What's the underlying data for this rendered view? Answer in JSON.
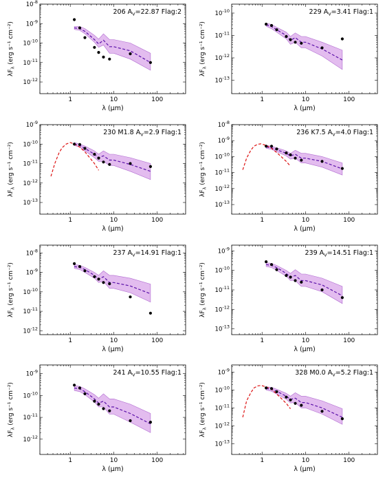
{
  "figure": {
    "x_label": "λ (μm)",
    "y_label": "λF_λ (erg s⁻¹ cm⁻²)"
  },
  "chart_data": [
    {
      "type": "scatter",
      "id": "206",
      "spectral_type": "",
      "av_label": "A_V=22.87",
      "flag": "Flag:2",
      "xlim": [
        0.2,
        450
      ],
      "ylog_range": [
        -12.6,
        -8
      ],
      "yticks": [
        "10^-12",
        "10^-11",
        "10^-10",
        "10^-9",
        "10^-8"
      ],
      "xticks": [
        "1",
        "10",
        "100"
      ],
      "photometry": {
        "x": [
          1.24,
          1.65,
          2.17,
          3.6,
          4.5,
          5.8,
          8.0,
          24,
          70
        ],
        "y": [
          1.6e-09,
          6e-10,
          1.9e-10,
          6e-11,
          3.3e-11,
          1.9e-11,
          1.5e-11,
          2.8e-11,
          1e-11
        ]
      },
      "model_median": {
        "x": [
          1.24,
          1.65,
          2.17,
          3.6,
          4.5,
          5.8,
          8.0,
          10,
          24,
          70
        ],
        "y": [
          6e-10,
          5.5e-10,
          4e-10,
          1.5e-10,
          9e-11,
          1.4e-10,
          6.5e-11,
          6.5e-11,
          4e-11,
          1e-11
        ]
      },
      "model_band_upper": [
        7e-10,
        7e-10,
        5.5e-10,
        2.5e-10,
        1.6e-10,
        3e-10,
        1.5e-10,
        1.5e-10,
        1e-10,
        3e-11
      ],
      "model_band_lower": [
        5e-10,
        4.5e-10,
        3e-10,
        1.1e-10,
        6e-11,
        8e-11,
        3e-11,
        3e-11,
        1.5e-11,
        4e-12
      ],
      "photosphere": null
    },
    {
      "type": "scatter",
      "id": "229",
      "spectral_type": "",
      "av_label": "A_V=3.41",
      "flag": "Flag:1",
      "xlim": [
        0.2,
        450
      ],
      "ylog_range": [
        -13.6,
        -9.6
      ],
      "yticks": [
        "10^-13",
        "10^-12",
        "10^-11",
        "10^-10"
      ],
      "xticks": [
        "1",
        "10",
        "100"
      ],
      "photometry": {
        "x": [
          1.24,
          1.65,
          2.17,
          3.6,
          4.5,
          5.8,
          8.0,
          24,
          70
        ],
        "y": [
          3.2e-11,
          2.8e-11,
          1.8e-11,
          9e-12,
          6.5e-12,
          5e-12,
          4.5e-12,
          2.8e-12,
          7e-12
        ]
      },
      "model_median": {
        "x": [
          1.24,
          1.65,
          2.17,
          3.6,
          4.5,
          5.8,
          8.0,
          10,
          24,
          70
        ],
        "y": [
          3e-11,
          2.5e-11,
          1.8e-11,
          1e-11,
          6e-12,
          8e-12,
          5e-12,
          5e-12,
          2.5e-12,
          8e-13
        ]
      },
      "model_band_upper": [
        3.5e-11,
        3.1e-11,
        2.3e-11,
        1.4e-11,
        9e-12,
        1.3e-11,
        9e-12,
        9e-12,
        5e-12,
        2.2e-12
      ],
      "model_band_lower": [
        2.6e-11,
        2e-11,
        1.4e-11,
        7e-12,
        4e-12,
        5e-12,
        2.8e-12,
        2.8e-12,
        1.2e-12,
        3e-13
      ],
      "photosphere": null
    },
    {
      "type": "scatter",
      "id": "230",
      "spectral_type": "M1.8",
      "av_label": "A_V=2.9",
      "flag": "Flag:1",
      "xlim": [
        0.2,
        450
      ],
      "ylog_range": [
        -13.6,
        -9
      ],
      "yticks": [
        "10^-13",
        "10^-12",
        "10^-11",
        "10^-10",
        "10^-9"
      ],
      "xticks": [
        "1",
        "10",
        "100"
      ],
      "photometry": {
        "x": [
          1.24,
          1.65,
          2.17,
          3.6,
          4.5,
          5.8,
          8.0,
          24,
          70
        ],
        "y": [
          1e-10,
          9.5e-11,
          6e-11,
          3e-11,
          1.9e-11,
          1.2e-11,
          9e-12,
          1e-11,
          7e-12
        ]
      },
      "model_median": {
        "x": [
          1.24,
          1.65,
          2.17,
          3.6,
          4.5,
          5.8,
          8.0,
          10,
          24,
          70
        ],
        "y": [
          1e-10,
          8.5e-11,
          6e-11,
          3e-11,
          2e-11,
          2.5e-11,
          1.5e-11,
          1.5e-11,
          9e-12,
          4e-12
        ]
      },
      "model_band_upper": [
        1.2e-10,
        1e-10,
        8e-11,
        4.5e-11,
        3e-11,
        4.5e-11,
        3e-11,
        3e-11,
        2e-11,
        1e-11
      ],
      "model_band_lower": [
        8.5e-11,
        7e-11,
        4.5e-11,
        2e-11,
        1.3e-11,
        1.3e-11,
        8e-12,
        8e-12,
        4e-12,
        1.5e-12
      ],
      "photosphere": {
        "x": [
          0.36,
          0.44,
          0.55,
          0.65,
          0.8,
          1.0,
          1.24,
          1.65,
          2.17,
          3.6,
          4.5
        ],
        "y": [
          2.2e-12,
          1e-11,
          3.5e-11,
          6.5e-11,
          1e-10,
          1.2e-10,
          1e-10,
          7e-11,
          4e-11,
          1e-11,
          4.5e-12
        ]
      }
    },
    {
      "type": "scatter",
      "id": "236",
      "spectral_type": "K7.5",
      "av_label": "A_V=4.0",
      "flag": "Flag:1",
      "xlim": [
        0.2,
        450
      ],
      "ylog_range": [
        -13.6,
        -8
      ],
      "yticks": [
        "10^-13",
        "10^-12",
        "10^-11",
        "10^-10",
        "10^-9",
        "10^-8"
      ],
      "xticks": [
        "1",
        "10",
        "100"
      ],
      "photometry": {
        "x": [
          1.24,
          1.65,
          2.17,
          3.6,
          4.5,
          5.8,
          8.0,
          24,
          70
        ],
        "y": [
          4.5e-10,
          4.5e-10,
          3e-10,
          1.7e-10,
          1.3e-10,
          8e-11,
          6e-11,
          5e-11,
          1.8e-11
        ]
      },
      "model_median": {
        "x": [
          1.24,
          1.65,
          2.17,
          3.6,
          4.5,
          5.8,
          8.0,
          10,
          24,
          70
        ],
        "y": [
          4e-10,
          3.5e-10,
          2.7e-10,
          1.6e-10,
          1.1e-10,
          1.4e-10,
          8e-11,
          8e-11,
          5e-11,
          1.7e-11
        ]
      },
      "model_band_upper": [
        5e-10,
        4.5e-10,
        3.5e-10,
        2.3e-10,
        1.6e-10,
        2.5e-10,
        1.6e-10,
        1.6e-10,
        1e-10,
        4e-11
      ],
      "model_band_lower": [
        3.3e-10,
        2.8e-10,
        2e-10,
        1.1e-10,
        7e-11,
        8e-11,
        4e-11,
        4e-11,
        2.2e-11,
        7e-12
      ],
      "photosphere": {
        "x": [
          0.36,
          0.44,
          0.55,
          0.65,
          0.8,
          0.95,
          1.24,
          1.65,
          2.17,
          3.6,
          4.5
        ],
        "y": [
          1.5e-11,
          8e-11,
          2.5e-10,
          4.5e-10,
          6e-10,
          6.3e-10,
          5e-10,
          3.3e-10,
          1.8e-10,
          5e-11,
          2.5e-11
        ]
      }
    },
    {
      "type": "scatter",
      "id": "237",
      "spectral_type": "",
      "av_label": "A_V=14.91",
      "flag": "Flag:1",
      "xlim": [
        0.2,
        450
      ],
      "ylog_range": [
        -12.2,
        -7.6
      ],
      "yticks": [
        "10^-12",
        "10^-11",
        "10^-10",
        "10^-9",
        "10^-8"
      ],
      "xticks": [
        "1",
        "10",
        "100"
      ],
      "photometry": {
        "x": [
          1.24,
          1.65,
          2.17,
          3.6,
          4.5,
          5.8,
          8.0,
          24,
          70
        ],
        "y": [
          2.8e-09,
          2e-09,
          1.2e-09,
          6e-10,
          4.5e-10,
          3e-10,
          2.6e-10,
          5.5e-11,
          8e-12
        ]
      },
      "model_median": {
        "x": [
          1.24,
          1.65,
          2.17,
          3.6,
          4.5,
          5.8,
          8.0,
          10,
          24,
          70
        ],
        "y": [
          2e-09,
          1.8e-09,
          1.4e-09,
          7e-10,
          4.5e-10,
          6e-10,
          3e-10,
          3e-10,
          2e-10,
          8e-11
        ]
      },
      "model_band_upper": [
        2.5e-09,
        2.3e-09,
        1.8e-09,
        1e-09,
        7e-10,
        1.2e-09,
        7e-10,
        7e-10,
        5e-10,
        2.5e-10
      ],
      "model_band_lower": [
        1.6e-09,
        1.4e-09,
        1e-09,
        5e-10,
        3e-10,
        3.5e-10,
        1.5e-10,
        1.5e-10,
        9e-11,
        3e-11
      ],
      "photosphere": null
    },
    {
      "type": "scatter",
      "id": "239",
      "spectral_type": "",
      "av_label": "A_V=14.51",
      "flag": "Flag:1",
      "xlim": [
        0.2,
        450
      ],
      "ylog_range": [
        -13.3,
        -8.7
      ],
      "yticks": [
        "10^-13",
        "10^-12",
        "10^-11",
        "10^-10",
        "10^-9"
      ],
      "xticks": [
        "1",
        "10",
        "100"
      ],
      "photometry": {
        "x": [
          1.24,
          1.65,
          2.17,
          3.6,
          4.5,
          5.8,
          8.0,
          24,
          70
        ],
        "y": [
          2.8e-10,
          2e-10,
          1.1e-10,
          5.5e-11,
          4.5e-11,
          3e-11,
          2.5e-11,
          1e-11,
          4e-12
        ]
      },
      "model_median": {
        "x": [
          1.24,
          1.65,
          2.17,
          3.6,
          4.5,
          5.8,
          8.0,
          10,
          24,
          70
        ],
        "y": [
          2e-10,
          1.8e-10,
          1.4e-10,
          7e-11,
          4.5e-11,
          5.5e-11,
          3e-11,
          3e-11,
          1.8e-11,
          5e-12
        ]
      },
      "model_band_upper": [
        2.5e-10,
        2.3e-10,
        1.8e-10,
        1e-10,
        7e-11,
        1.1e-10,
        6.5e-11,
        6.5e-11,
        4e-11,
        1.5e-11
      ],
      "model_band_lower": [
        1.6e-10,
        1.4e-10,
        1e-10,
        5e-11,
        3e-11,
        3e-11,
        1.5e-11,
        1.5e-11,
        8e-12,
        2e-12
      ],
      "photosphere": null
    },
    {
      "type": "scatter",
      "id": "241",
      "spectral_type": "",
      "av_label": "A_V=10.55",
      "flag": "Flag:1",
      "xlim": [
        0.2,
        450
      ],
      "ylog_range": [
        -12.7,
        -8.6
      ],
      "yticks": [
        "10^-12",
        "10^-11",
        "10^-10",
        "10^-9"
      ],
      "xticks": [
        "1",
        "10",
        "100"
      ],
      "photometry": {
        "x": [
          1.24,
          1.65,
          2.17,
          3.6,
          4.5,
          5.8,
          8.0,
          24,
          70
        ],
        "y": [
          3e-10,
          2.2e-10,
          1.2e-10,
          5.5e-11,
          4e-11,
          2.5e-11,
          2e-11,
          7e-12,
          6e-12
        ]
      },
      "model_median": {
        "x": [
          1.24,
          1.65,
          2.17,
          3.6,
          4.5,
          5.8,
          8.0,
          10,
          24,
          70
        ],
        "y": [
          2.2e-10,
          2e-10,
          1.5e-10,
          7e-11,
          4.5e-11,
          5.5e-11,
          3e-11,
          3e-11,
          1.5e-11,
          5e-12
        ]
      },
      "model_band_upper": [
        2.8e-10,
        2.6e-10,
        2e-10,
        1.1e-10,
        7.5e-11,
        1.2e-10,
        7e-11,
        7e-11,
        4e-11,
        1.5e-11
      ],
      "model_band_lower": [
        1.7e-10,
        1.5e-10,
        1.1e-10,
        5e-11,
        3e-11,
        3e-11,
        1.4e-11,
        1.4e-11,
        6e-12,
        2e-12
      ],
      "photosphere": null
    },
    {
      "type": "scatter",
      "id": "328",
      "spectral_type": "M0.0",
      "av_label": "A_V=5.2",
      "flag": "Flag:1",
      "xlim": [
        0.2,
        450
      ],
      "ylog_range": [
        -13.6,
        -8.6
      ],
      "yticks": [
        "10^-13",
        "10^-12",
        "10^-11",
        "10^-10",
        "10^-9"
      ],
      "xticks": [
        "1",
        "10",
        "100"
      ],
      "photometry": {
        "x": [
          1.24,
          1.65,
          2.17,
          3.6,
          4.5,
          5.8,
          8.0,
          24,
          70
        ],
        "y": [
          1.3e-10,
          1.2e-10,
          8e-11,
          4e-11,
          2.8e-11,
          1.8e-11,
          1.4e-11,
          6.5e-12,
          2.5e-12
        ]
      },
      "model_median": {
        "x": [
          1.24,
          1.65,
          2.17,
          3.6,
          4.5,
          5.8,
          8.0,
          10,
          24,
          70
        ],
        "y": [
          1.2e-10,
          1.1e-10,
          8.5e-11,
          4.5e-11,
          3e-11,
          3.5e-11,
          2e-11,
          2e-11,
          1e-11,
          3e-12
        ]
      },
      "model_band_upper": [
        1.5e-10,
        1.4e-10,
        1.1e-10,
        6.5e-11,
        4.5e-11,
        7e-11,
        4.5e-11,
        4.5e-11,
        2.5e-11,
        9e-12
      ],
      "model_band_lower": [
        1e-10,
        8.5e-11,
        6e-11,
        3e-11,
        1.9e-11,
        2e-11,
        1e-11,
        1e-11,
        4.5e-12,
        1.2e-12
      ],
      "photosphere": {
        "x": [
          0.36,
          0.44,
          0.55,
          0.65,
          0.8,
          0.95,
          1.24,
          1.65,
          2.17,
          3.6,
          4.5
        ],
        "y": [
          3e-12,
          2.5e-11,
          7e-11,
          1.3e-10,
          1.7e-10,
          1.8e-10,
          1.5e-10,
          1.1e-10,
          6e-11,
          1.8e-11,
          9e-12
        ]
      }
    }
  ]
}
